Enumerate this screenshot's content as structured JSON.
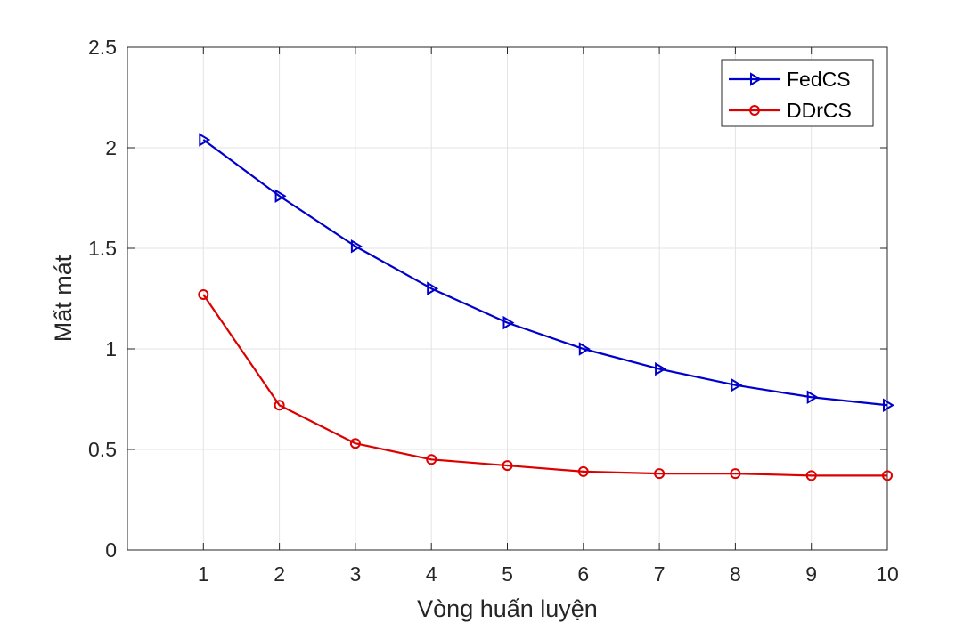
{
  "chart_data": {
    "type": "line",
    "title": "",
    "xlabel": "Vòng huấn luyện",
    "ylabel": "Mất mát",
    "x": [
      1,
      2,
      3,
      4,
      5,
      6,
      7,
      8,
      9,
      10
    ],
    "xlim": [
      0,
      10
    ],
    "ylim": [
      0,
      2.5
    ],
    "xticks": [
      "1",
      "2",
      "3",
      "4",
      "5",
      "6",
      "7",
      "8",
      "9",
      "10"
    ],
    "yticks": [
      "0",
      "0.5",
      "1",
      "1.5",
      "2",
      "2.5"
    ],
    "grid": true,
    "legend_position": "top-right",
    "series": [
      {
        "name": "FedCS",
        "color": "#0000cc",
        "marker": "triangle-right",
        "values": [
          2.04,
          1.76,
          1.51,
          1.3,
          1.13,
          1.0,
          0.9,
          0.82,
          0.76,
          0.72
        ]
      },
      {
        "name": "DDrCS",
        "color": "#dd0000",
        "marker": "circle",
        "values": [
          1.27,
          0.72,
          0.53,
          0.45,
          0.42,
          0.39,
          0.38,
          0.38,
          0.37,
          0.37
        ]
      }
    ]
  }
}
